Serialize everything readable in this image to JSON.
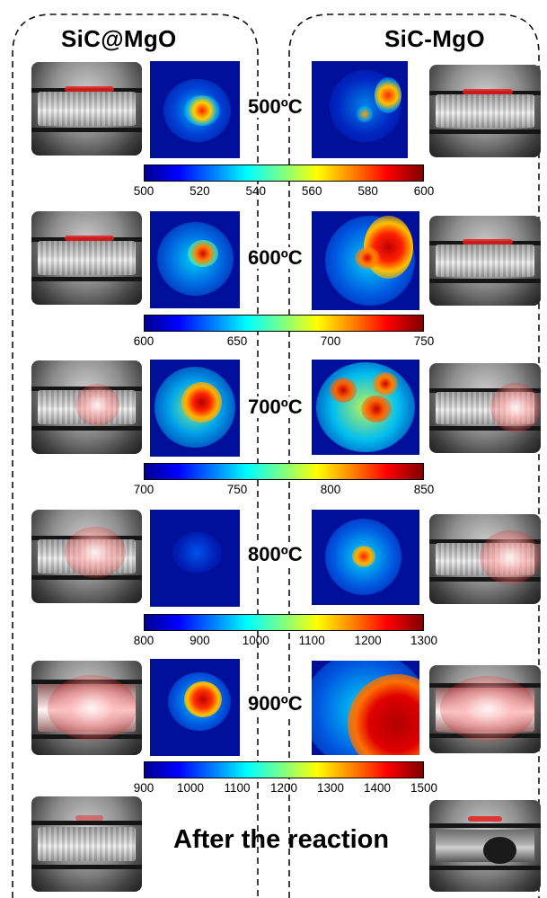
{
  "titles": {
    "left": "SiC@MgO",
    "right": "SiC-MgO"
  },
  "rows": [
    {
      "temperature": "500ºC",
      "colorbar_ticks": [
        "500",
        "520",
        "540",
        "560",
        "580",
        "600"
      ]
    },
    {
      "temperature": "600ºC",
      "colorbar_ticks": [
        "600",
        "650",
        "700",
        "750"
      ]
    },
    {
      "temperature": "700ºC",
      "colorbar_ticks": [
        "700",
        "750",
        "800",
        "850"
      ]
    },
    {
      "temperature": "800ºC",
      "colorbar_ticks": [
        "800",
        "900",
        "1000",
        "1100",
        "1200",
        "1300"
      ]
    },
    {
      "temperature": "900ºC",
      "colorbar_ticks": [
        "900",
        "1000",
        "1100",
        "1200",
        "1300",
        "1400",
        "1500"
      ]
    }
  ],
  "after_label": "After the reaction",
  "colormap": "jet",
  "photo_subjects": {
    "left": "reactor-sample-photo",
    "right": "reactor-sample-photo"
  }
}
